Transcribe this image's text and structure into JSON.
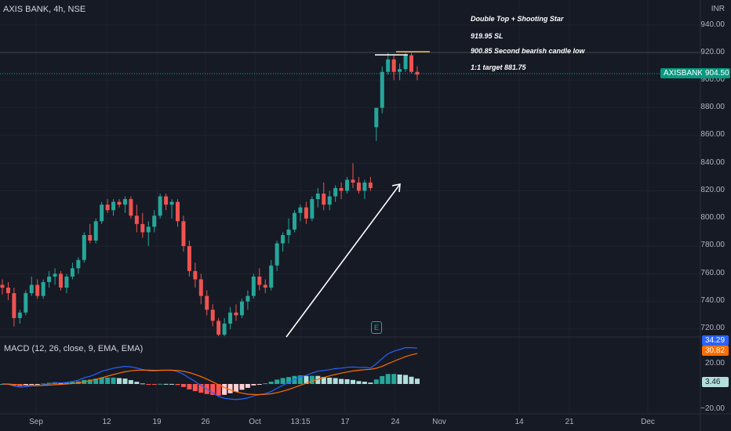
{
  "header": {
    "title": "AXIS BANK, 4h, NSE",
    "currency": "INR"
  },
  "price_axis": {
    "labels": [
      "940.00",
      "920.00",
      "900.00",
      "880.00",
      "860.00",
      "840.00",
      "820.00",
      "800.00",
      "780.00",
      "760.00",
      "740.00",
      "720.00"
    ]
  },
  "macd_axis": {
    "labels": [
      "20.00",
      "−20.00"
    ]
  },
  "time_axis": {
    "labels": [
      "Sep",
      "12",
      "19",
      "26",
      "Oct",
      "13:15",
      "17",
      "24",
      "Nov",
      "14",
      "21",
      "Dec"
    ]
  },
  "annotations": {
    "line1": "Double Top + Shooting Star",
    "line2": "919.95 SL",
    "line3": "900.85 Second bearish candle low",
    "line4": "1:1 target 881.75"
  },
  "price_tag": {
    "symbol": "AXISBANK",
    "value": "904.50"
  },
  "macd": {
    "title": "MACD (12, 26, close, 9, EMA, EMA)",
    "macd_value": "34.29",
    "signal_value": "30.82",
    "hist_value": "3.46"
  },
  "event_icon": "E",
  "colors": {
    "up": "#26a69a",
    "down": "#ef5350",
    "macd": "#2962ff",
    "signal": "#ff6d00",
    "bg": "#161a25"
  },
  "chart_data": {
    "type": "candlestick",
    "ylim": [
      710,
      950
    ],
    "candles": [
      [
        752,
        756,
        745,
        750
      ],
      [
        750,
        754,
        741,
        746
      ],
      [
        746,
        750,
        722,
        728
      ],
      [
        728,
        734,
        724,
        732
      ],
      [
        732,
        748,
        730,
        746
      ],
      [
        746,
        758,
        744,
        752
      ],
      [
        752,
        756,
        742,
        744
      ],
      [
        744,
        756,
        742,
        754
      ],
      [
        754,
        762,
        750,
        758
      ],
      [
        758,
        764,
        752,
        760
      ],
      [
        760,
        762,
        748,
        750
      ],
      [
        750,
        760,
        746,
        758
      ],
      [
        758,
        768,
        756,
        764
      ],
      [
        764,
        772,
        760,
        770
      ],
      [
        770,
        790,
        768,
        788
      ],
      [
        788,
        796,
        782,
        784
      ],
      [
        784,
        800,
        782,
        798
      ],
      [
        798,
        812,
        796,
        810
      ],
      [
        810,
        814,
        804,
        806
      ],
      [
        806,
        814,
        802,
        812
      ],
      [
        812,
        814,
        808,
        810
      ],
      [
        810,
        816,
        804,
        814
      ],
      [
        814,
        816,
        800,
        802
      ],
      [
        802,
        810,
        790,
        796
      ],
      [
        796,
        804,
        786,
        790
      ],
      [
        790,
        798,
        780,
        794
      ],
      [
        794,
        806,
        790,
        802
      ],
      [
        802,
        818,
        800,
        816
      ],
      [
        816,
        818,
        806,
        810
      ],
      [
        810,
        814,
        800,
        812
      ],
      [
        812,
        814,
        794,
        798
      ],
      [
        798,
        802,
        776,
        780
      ],
      [
        780,
        784,
        758,
        762
      ],
      [
        762,
        768,
        750,
        756
      ],
      [
        756,
        760,
        738,
        744
      ],
      [
        744,
        748,
        730,
        734
      ],
      [
        734,
        738,
        722,
        726
      ],
      [
        726,
        728,
        712,
        716
      ],
      [
        716,
        728,
        708,
        724
      ],
      [
        724,
        736,
        720,
        732
      ],
      [
        732,
        738,
        726,
        730
      ],
      [
        730,
        742,
        728,
        740
      ],
      [
        740,
        748,
        734,
        744
      ],
      [
        744,
        760,
        742,
        758
      ],
      [
        758,
        764,
        748,
        752
      ],
      [
        752,
        756,
        746,
        750
      ],
      [
        750,
        770,
        748,
        766
      ],
      [
        766,
        784,
        762,
        782
      ],
      [
        782,
        790,
        776,
        788
      ],
      [
        788,
        800,
        782,
        792
      ],
      [
        792,
        806,
        790,
        804
      ],
      [
        804,
        810,
        798,
        808
      ],
      [
        808,
        812,
        796,
        800
      ],
      [
        800,
        816,
        798,
        814
      ],
      [
        814,
        822,
        808,
        818
      ],
      [
        818,
        826,
        806,
        810
      ],
      [
        810,
        820,
        806,
        816
      ],
      [
        816,
        824,
        812,
        822
      ],
      [
        822,
        826,
        814,
        820
      ],
      [
        820,
        830,
        818,
        828
      ],
      [
        828,
        840,
        822,
        826
      ],
      [
        826,
        830,
        818,
        820
      ],
      [
        820,
        828,
        814,
        826
      ],
      [
        826,
        830,
        820,
        822
      ],
      [
        866,
        880,
        856,
        880
      ],
      [
        880,
        910,
        876,
        906
      ],
      [
        906,
        920,
        904,
        915
      ],
      [
        915,
        918,
        900,
        906
      ],
      [
        906,
        912,
        900,
        908
      ],
      [
        908,
        920,
        906,
        918
      ],
      [
        918,
        920,
        905,
        906
      ],
      [
        906,
        910,
        900,
        904
      ]
    ]
  }
}
